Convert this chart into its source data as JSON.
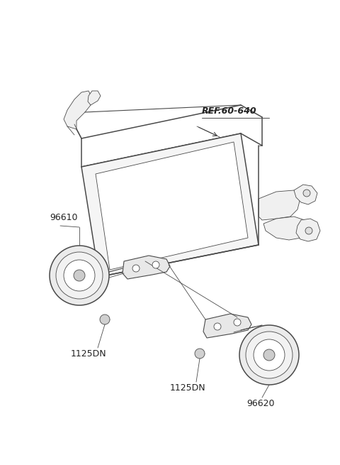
{
  "bg_color": "#ffffff",
  "line_color": "#4a4a4a",
  "text_color": "#222222",
  "labels": {
    "ref": "REF.60-640",
    "part1": "96610",
    "part2": "1125DN",
    "part3": "1125DN",
    "part4": "96620"
  },
  "figsize": [
    4.8,
    6.55
  ],
  "dpi": 100
}
